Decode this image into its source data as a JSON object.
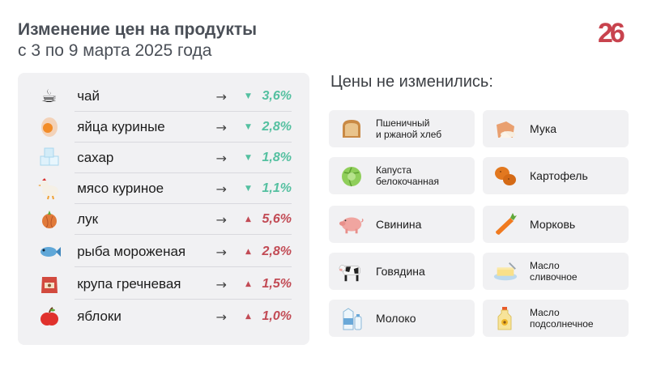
{
  "header": {
    "title_line1": "Изменение цен на продукты",
    "title_line2": "с 3 по 9 марта 2025 года"
  },
  "logo": {
    "text": "26",
    "color": "#c8434e"
  },
  "colors": {
    "down": "#54c0a0",
    "up": "#c24b55",
    "panel": "#f1f1f3"
  },
  "changes": [
    {
      "icon": "tea-cup-icon",
      "name": "чай",
      "arrow": "→",
      "trend": "down",
      "triangle": "▼",
      "value": "3,6%"
    },
    {
      "icon": "eggs-icon",
      "name": "яйца куриные",
      "arrow": "→",
      "trend": "down",
      "triangle": "▼",
      "value": "2,8%"
    },
    {
      "icon": "sugar-cubes-icon",
      "name": "сахар",
      "arrow": "→",
      "trend": "down",
      "triangle": "▼",
      "value": "1,8%"
    },
    {
      "icon": "chicken-icon",
      "name": "мясо куриное",
      "arrow": "→",
      "trend": "down",
      "triangle": "▼",
      "value": "1,1%"
    },
    {
      "icon": "onion-icon",
      "name": "лук",
      "arrow": "→",
      "trend": "up",
      "triangle": "▲",
      "value": "5,6%"
    },
    {
      "icon": "fish-icon",
      "name": "рыба мороженая",
      "arrow": "→",
      "trend": "up",
      "triangle": "▲",
      "value": "2,8%"
    },
    {
      "icon": "buckwheat-bag-icon",
      "name": "крупа гречневая",
      "arrow": "→",
      "trend": "up",
      "triangle": "▲",
      "value": "1,5%"
    },
    {
      "icon": "apple-icon",
      "name": "яблоки",
      "arrow": "→",
      "trend": "up",
      "triangle": "▲",
      "value": "1,0%"
    }
  ],
  "unchanged": {
    "title": "Цены не изменились:",
    "items": [
      {
        "icon": "bread-icon",
        "line1": "Пшеничный",
        "line2": "и ржаной хлеб"
      },
      {
        "icon": "flour-icon",
        "line1": "Мука",
        "line2": ""
      },
      {
        "icon": "cabbage-icon",
        "line1": "Капуста",
        "line2": "белокочанная"
      },
      {
        "icon": "potato-icon",
        "line1": "Картофель",
        "line2": ""
      },
      {
        "icon": "pig-icon",
        "line1": "Свинина",
        "line2": ""
      },
      {
        "icon": "carrot-icon",
        "line1": "Морковь",
        "line2": ""
      },
      {
        "icon": "cow-icon",
        "line1": "Говядина",
        "line2": ""
      },
      {
        "icon": "butter-icon",
        "line1": "Масло",
        "line2": "сливочное"
      },
      {
        "icon": "milk-icon",
        "line1": "Молоко",
        "line2": ""
      },
      {
        "icon": "sunflower-oil-icon",
        "line1": "Масло",
        "line2": "подсолнечное"
      }
    ]
  }
}
